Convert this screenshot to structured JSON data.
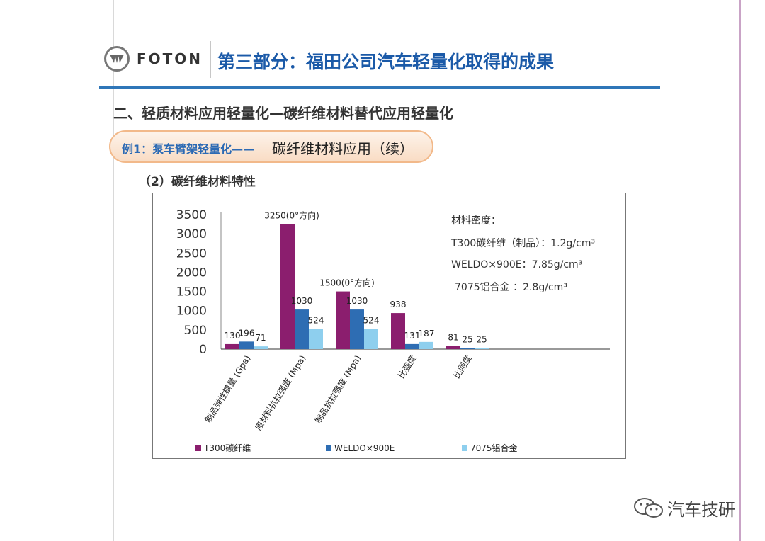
{
  "header": {
    "logo_text": "FOTON",
    "section_title": "第三部分：福田公司汽车轻量化取得的成果"
  },
  "subtitle": "二、轻质材料应用轻量化—碳纤维材料替代应用轻量化",
  "example": {
    "label": "例1：泵车臂架轻量化——",
    "text": "碳纤维材料应用（续）"
  },
  "subsection": "（2）碳纤维材料特性",
  "density": {
    "title": "材料密度：",
    "lines": [
      "T300碳纤维（制品）：1.2g/cm³",
      "WELDO×900E：7.85g/cm³",
      "7075铝合金 ：2.8g/cm³"
    ]
  },
  "chart_data": {
    "type": "bar",
    "categories": [
      "制品弹性模量 (Gpa)",
      "原材料抗拉强度 (Mpa)",
      "制品抗拉强度 (Mpa)",
      "比强度",
      "比刚度"
    ],
    "series": [
      {
        "name": "T300碳纤维",
        "values": [
          130,
          3250,
          1500,
          938,
          81
        ],
        "color": "#8b1e6e"
      },
      {
        "name": "WELDO×900E",
        "values": [
          196,
          1030,
          1030,
          131,
          25
        ],
        "color": "#2e6db3"
      },
      {
        "name": "7075铝合金",
        "values": [
          71,
          524,
          524,
          187,
          25
        ],
        "color": "#8ecfee"
      }
    ],
    "data_labels": [
      [
        "130",
        "3250(0°方向)",
        "1500(0°方向)",
        "938",
        "81"
      ],
      [
        "196",
        "1030",
        "1030",
        "131",
        "25"
      ],
      [
        "71",
        "524",
        "524",
        "187",
        "25"
      ]
    ],
    "yticks": [
      "0",
      "500",
      "1000",
      "1500",
      "2000",
      "2500",
      "3000",
      "3500"
    ],
    "ylim": [
      0,
      3500
    ],
    "grid": false,
    "legend": "bottom"
  },
  "watermark": "汽车技研"
}
